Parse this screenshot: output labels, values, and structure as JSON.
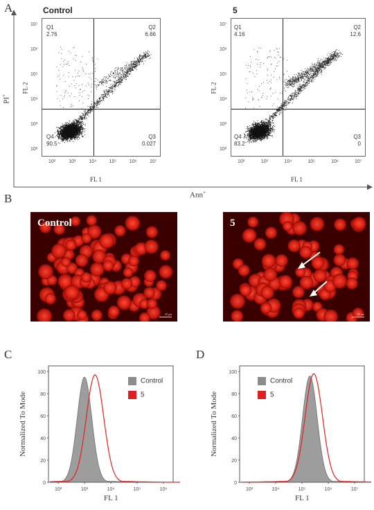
{
  "panels": {
    "A": "A",
    "B": "B",
    "C": "C",
    "D": "D"
  },
  "flow": {
    "left": {
      "title": "Control",
      "q1": {
        "label": "Q1",
        "value": "2.76"
      },
      "q2": {
        "label": "Q2",
        "value": "6.66"
      },
      "q3": {
        "label": "Q3",
        "value": "0.027"
      },
      "q4": {
        "label": "Q4",
        "value": "90.5"
      }
    },
    "right": {
      "title": "5",
      "q1": {
        "label": "Q1",
        "value": "4.16"
      },
      "q2": {
        "label": "Q2",
        "value": "12.6"
      },
      "q3": {
        "label": "Q3",
        "value": "0"
      },
      "q4": {
        "label": "Q4",
        "value": "83.2"
      }
    },
    "xlabel": "FL 1",
    "ylabel": "FL 2",
    "outer_x": "Ann",
    "outer_x_sup": "+",
    "outer_y": "PI",
    "outer_y_sup": "+",
    "ticks_y": [
      "10⁷",
      "10⁶",
      "10⁵",
      "10⁴",
      "10³",
      "10²"
    ],
    "ticks_x": [
      "10²",
      "10³",
      "10⁴",
      "10⁵",
      "10⁶",
      "10⁷"
    ]
  },
  "micro": {
    "left_title": "Control",
    "right_title": "5",
    "scale_text": "20 μm"
  },
  "chart_data": [
    {
      "type": "area",
      "panel": "C",
      "xlabel": "FL 1",
      "ylabel": "Normalized To Mode",
      "xscale": "log",
      "xticks": [
        "10²",
        "10³",
        "10⁴",
        "10⁵",
        "10⁶"
      ],
      "yticks": [
        "0",
        "20",
        "40",
        "60",
        "80",
        "100"
      ],
      "ylim": [
        0,
        100
      ],
      "legend": "top-right",
      "series": [
        {
          "name": "Control",
          "color": "#8c8c8c",
          "peak_log10": 3.0,
          "peak": 95
        },
        {
          "name": "5",
          "color": "#e02020",
          "peak_log10": 3.4,
          "peak": 97
        }
      ]
    },
    {
      "type": "area",
      "panel": "D",
      "xlabel": "FL 1",
      "ylabel": "Normalized To Mode",
      "xscale": "log",
      "xticks": [
        "10³",
        "10⁴",
        "10⁵",
        "10⁶",
        "10⁷"
      ],
      "yticks": [
        "0",
        "20",
        "40",
        "60",
        "80",
        "100"
      ],
      "ylim": [
        0,
        100
      ],
      "legend": "top-right",
      "series": [
        {
          "name": "Control",
          "color": "#8c8c8c",
          "peak_log10": 5.3,
          "peak": 96
        },
        {
          "name": "5",
          "color": "#e02020",
          "peak_log10": 5.45,
          "peak": 98
        }
      ]
    }
  ]
}
